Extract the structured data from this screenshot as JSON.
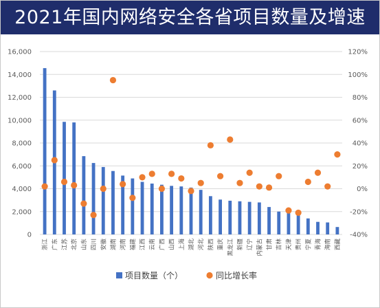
{
  "title": "2021年国内网络安全各省项目数量及增速",
  "colors": {
    "title_bg": "#1f2d6b",
    "title_text": "#ffffff",
    "bar": "#4472c4",
    "dot": "#ed7d31",
    "grid": "#d9d9d9"
  },
  "chart_data": {
    "type": "bar+scatter",
    "categories": [
      "浙江",
      "广东",
      "江苏",
      "北京",
      "山东",
      "四川",
      "安徽",
      "湖南",
      "河南",
      "福建",
      "江西",
      "云南",
      "广西",
      "山西",
      "上海",
      "湖北",
      "河北",
      "陕西",
      "重庆",
      "黑龙江",
      "新疆",
      "辽宁",
      "内蒙古",
      "甘肃",
      "吉林",
      "天津",
      "贵州",
      "宁夏",
      "青海",
      "海南",
      "西藏"
    ],
    "series": [
      {
        "name": "项目数量（个）",
        "axis": "left",
        "values": [
          14550,
          12600,
          9850,
          9800,
          6850,
          6250,
          5900,
          5550,
          5150,
          4900,
          4600,
          4450,
          4350,
          4250,
          4200,
          4100,
          3900,
          3350,
          3050,
          2950,
          2900,
          2850,
          2800,
          2400,
          2000,
          2000,
          1850,
          1400,
          1100,
          1050,
          650
        ]
      },
      {
        "name": "同比增长率",
        "axis": "right",
        "values": [
          2,
          25,
          6,
          3,
          -13,
          -23,
          0,
          95,
          4,
          -8,
          10,
          13,
          0,
          13,
          9,
          -2,
          5,
          38,
          11,
          43,
          5,
          14,
          2,
          1,
          11,
          -19,
          -21,
          6,
          14,
          2,
          30
        ]
      }
    ],
    "y_left": {
      "min": 0,
      "max": 16000,
      "step": 2000,
      "ticks": [
        "0",
        "2,000",
        "4,000",
        "6,000",
        "8,000",
        "10,000",
        "12,000",
        "14,000",
        "16,000"
      ]
    },
    "y_right": {
      "min": -40,
      "max": 120,
      "step": 20,
      "ticks": [
        "-40%",
        "-20%",
        "0%",
        "20%",
        "40%",
        "60%",
        "80%",
        "100%",
        "120%"
      ]
    },
    "grid": true,
    "legend_position": "bottom"
  }
}
